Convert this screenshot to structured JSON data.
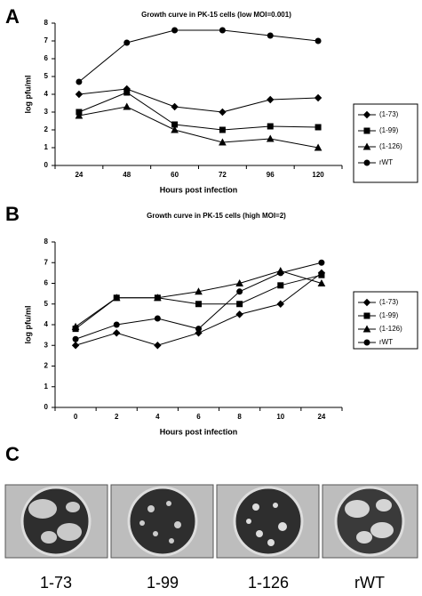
{
  "chart_data": [
    {
      "type": "line",
      "title": "Growth curve in PK-15 cells (low MOI=0.001)",
      "x_label": "Hours post infection",
      "y_label": "log pfu/ml",
      "categories": [
        "24",
        "48",
        "60",
        "72",
        "96",
        "120"
      ],
      "ylim": [
        0,
        8
      ],
      "yticks": [
        0,
        1,
        2,
        3,
        4,
        5,
        6,
        7,
        8
      ],
      "series": [
        {
          "name": "(1-73)",
          "color": "#000000",
          "marker": "diamond",
          "values": [
            4.0,
            4.3,
            3.3,
            3.0,
            3.7,
            3.8
          ]
        },
        {
          "name": "(1-99)",
          "color": "#000000",
          "marker": "square",
          "values": [
            3.0,
            4.1,
            2.3,
            2.0,
            2.2,
            2.15
          ]
        },
        {
          "name": "(1-126)",
          "color": "#000000",
          "marker": "triangle",
          "values": [
            2.8,
            3.3,
            2.0,
            1.3,
            1.5,
            1.0
          ]
        },
        {
          "name": "rWT",
          "color": "#000000",
          "marker": "circle",
          "values": [
            4.7,
            6.9,
            7.6,
            7.6,
            7.3,
            7.0
          ]
        }
      ]
    },
    {
      "type": "line",
      "title": "Growth curve in PK-15 cells (high MOI=2)",
      "x_label": "Hours post infection",
      "y_label": "log pfu/ml",
      "categories": [
        "0",
        "2",
        "4",
        "6",
        "8",
        "10",
        "24"
      ],
      "ylim": [
        0,
        8
      ],
      "yticks": [
        0,
        1,
        2,
        3,
        4,
        5,
        6,
        7,
        8
      ],
      "series": [
        {
          "name": "(1-73)",
          "color": "#000000",
          "marker": "diamond",
          "values": [
            3.0,
            3.6,
            3.0,
            3.6,
            4.5,
            5.0,
            6.5
          ]
        },
        {
          "name": "(1-99)",
          "color": "#000000",
          "marker": "square",
          "values": [
            3.8,
            5.3,
            5.3,
            5.0,
            5.0,
            5.9,
            6.4
          ]
        },
        {
          "name": "(1-126)",
          "color": "#000000",
          "marker": "triangle",
          "values": [
            3.9,
            5.3,
            5.3,
            5.6,
            6.0,
            6.6,
            6.0
          ]
        },
        {
          "name": "rWT",
          "color": "#000000",
          "marker": "circle",
          "values": [
            3.3,
            4.0,
            4.3,
            3.8,
            5.6,
            6.5,
            7.0
          ]
        }
      ]
    }
  ],
  "panel_labels": [
    "A",
    "B",
    "C"
  ],
  "plates": {
    "captions": [
      "1-73",
      "1-99",
      "1-126",
      "rWT"
    ]
  }
}
